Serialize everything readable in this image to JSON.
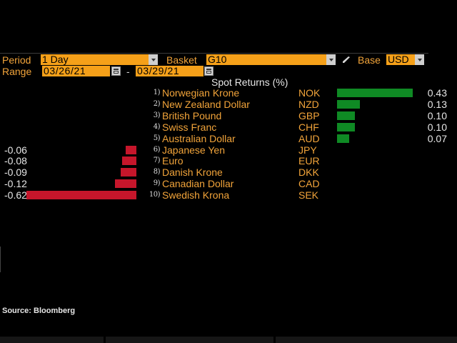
{
  "controls": {
    "period_label": "Period",
    "period_value": "1 Day",
    "basket_label": "Basket",
    "basket_value": "G10",
    "base_label": "Base",
    "base_value": "USD",
    "range_label": "Range",
    "range_start": "03/26/21",
    "range_separator": "-",
    "range_end": "03/29/21"
  },
  "table": {
    "title": "Spot Returns (%)",
    "rows": [
      {
        "rank": "1)",
        "name": "Norwegian Krone",
        "code": "NOK",
        "value": 0.43,
        "label": "0.43"
      },
      {
        "rank": "2)",
        "name": "New Zealand Dollar",
        "code": "NZD",
        "value": 0.13,
        "label": "0.13"
      },
      {
        "rank": "3)",
        "name": "British Pound",
        "code": "GBP",
        "value": 0.1,
        "label": "0.10"
      },
      {
        "rank": "4)",
        "name": "Swiss Franc",
        "code": "CHF",
        "value": 0.1,
        "label": "0.10"
      },
      {
        "rank": "5)",
        "name": "Australian Dollar",
        "code": "AUD",
        "value": 0.07,
        "label": "0.07"
      },
      {
        "rank": "6)",
        "name": "Japanese Yen",
        "code": "JPY",
        "value": -0.06,
        "label": "-0.06"
      },
      {
        "rank": "7)",
        "name": "Euro",
        "code": "EUR",
        "value": -0.08,
        "label": "-0.08"
      },
      {
        "rank": "8)",
        "name": "Danish Krone",
        "code": "DKK",
        "value": -0.09,
        "label": "-0.09"
      },
      {
        "rank": "9)",
        "name": "Canadian Dollar",
        "code": "CAD",
        "value": -0.12,
        "label": "-0.12"
      },
      {
        "rank": "10)",
        "name": "Swedish Krona",
        "code": "SEK",
        "value": -0.62,
        "label": "-0.62"
      }
    ]
  },
  "footer": {
    "source": "Source: Bloomberg"
  },
  "colors": {
    "positive": "#0f8a24",
    "negative": "#c6162b",
    "accent": "#f5a019",
    "label": "#f2a43a"
  },
  "icons": {
    "dropdown": "chevron-down-icon",
    "calendar": "calendar-icon",
    "edit": "pencil-icon"
  }
}
